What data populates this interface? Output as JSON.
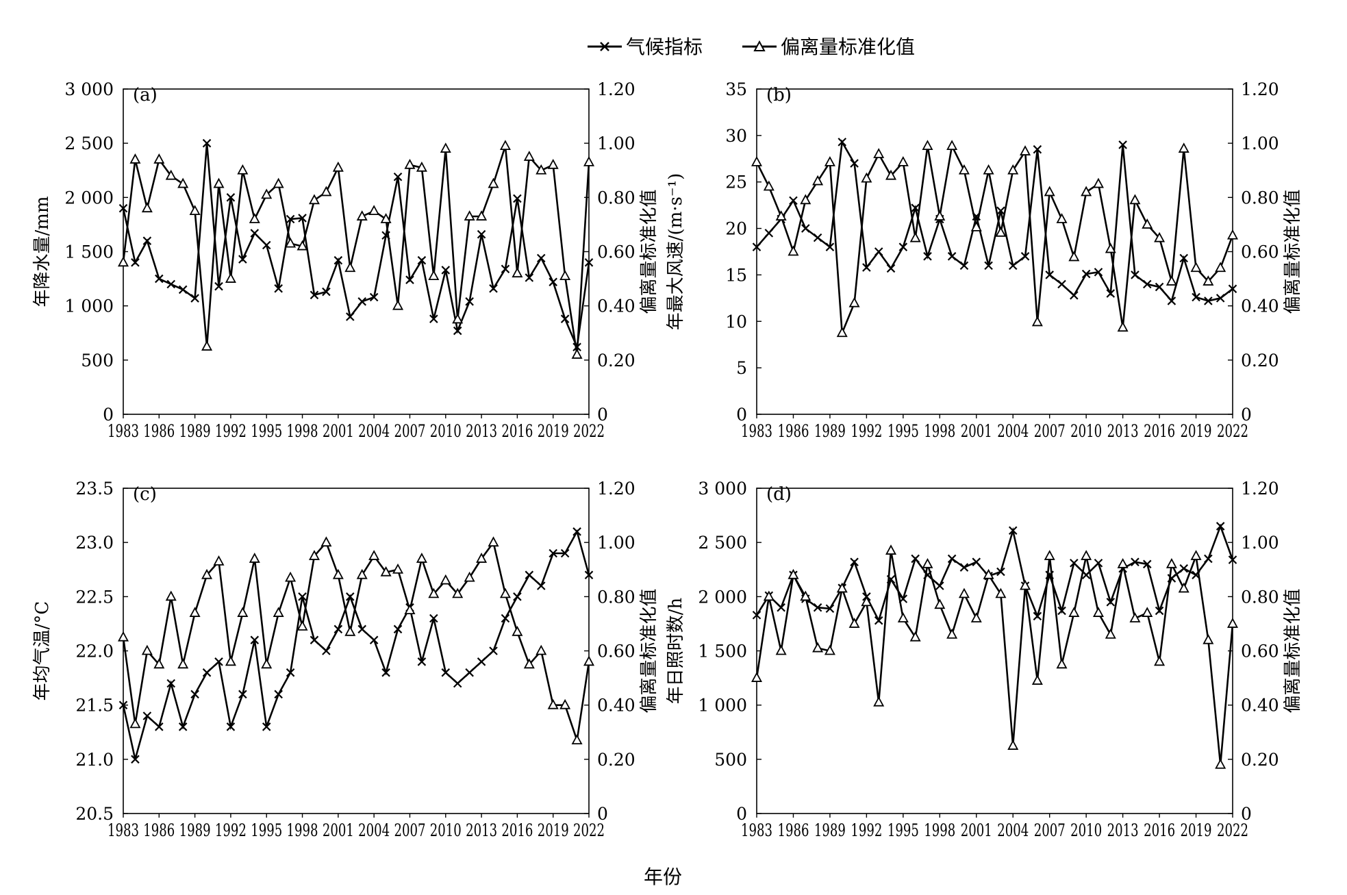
{
  "legend": {
    "climate_index": "气候指标",
    "deviation": "偏离量标准化值"
  },
  "x_axis_title": "年份",
  "chart_data": [
    {
      "panel_label": "(a)",
      "type": "line",
      "x": [
        1983,
        1984,
        1985,
        1986,
        1987,
        1988,
        1989,
        1990,
        1991,
        1992,
        1993,
        1994,
        1995,
        1996,
        1997,
        1998,
        1999,
        2000,
        2001,
        2002,
        2003,
        2004,
        2005,
        2006,
        2007,
        2008,
        2009,
        2010,
        2011,
        2012,
        2013,
        2014,
        2015,
        2016,
        2017,
        2018,
        2019,
        2020,
        2021,
        2022
      ],
      "xticks": [
        "1983",
        "1986",
        "1989",
        "1992",
        "1995",
        "1998",
        "2001",
        "2004",
        "2007",
        "2010",
        "2013",
        "2016",
        "2019",
        "2022"
      ],
      "ylabel_left": "年降水量/mm",
      "ylabel_right": "偏离量标准化值",
      "yticks_left": [
        "0",
        "500",
        "1 000",
        "1 500",
        "2 000",
        "2 500",
        "3 000"
      ],
      "yticks_right": [
        "0",
        "0.20",
        "0.40",
        "0.60",
        "0.80",
        "1.00",
        "1.20"
      ],
      "ylim_left": [
        0,
        3000
      ],
      "ylim_right": [
        0,
        1.2
      ],
      "series": [
        {
          "name": "气候指标",
          "axis": "left",
          "marker": "x",
          "values": [
            1900,
            1400,
            1600,
            1250,
            1200,
            1150,
            1070,
            2500,
            1180,
            2000,
            1430,
            1670,
            1560,
            1160,
            1800,
            1810,
            1100,
            1130,
            1420,
            900,
            1040,
            1080,
            1650,
            2190,
            1240,
            1420,
            880,
            1330,
            770,
            1040,
            1660,
            1160,
            1340,
            1990,
            1260,
            1440,
            1220,
            880,
            620,
            1400
          ]
        },
        {
          "name": "偏离量标准化值",
          "axis": "right",
          "marker": "triangle",
          "values": [
            0.56,
            0.94,
            0.76,
            0.94,
            0.88,
            0.85,
            0.75,
            0.25,
            0.85,
            0.5,
            0.9,
            0.72,
            0.81,
            0.85,
            0.63,
            0.62,
            0.79,
            0.82,
            0.91,
            0.54,
            0.73,
            0.75,
            0.72,
            0.4,
            0.92,
            0.91,
            0.51,
            0.98,
            0.35,
            0.73,
            0.73,
            0.85,
            0.99,
            0.52,
            0.95,
            0.9,
            0.92,
            0.51,
            0.22,
            0.93
          ]
        }
      ]
    },
    {
      "panel_label": "(b)",
      "type": "line",
      "x": [
        1983,
        1984,
        1985,
        1986,
        1987,
        1988,
        1989,
        1990,
        1991,
        1992,
        1993,
        1994,
        1995,
        1996,
        1997,
        1998,
        1999,
        2000,
        2001,
        2002,
        2003,
        2004,
        2005,
        2006,
        2007,
        2008,
        2009,
        2010,
        2011,
        2012,
        2013,
        2014,
        2015,
        2016,
        2017,
        2018,
        2019,
        2020,
        2021,
        2022
      ],
      "xticks": [
        "1983",
        "1986",
        "1989",
        "1992",
        "1995",
        "1998",
        "2001",
        "2004",
        "2007",
        "2010",
        "2013",
        "2016",
        "2019",
        "2022"
      ],
      "ylabel_left": "年最大风速/(m·s⁻¹)",
      "ylabel_right": "偏离量标准化值",
      "yticks_left": [
        "0",
        "5",
        "10",
        "15",
        "20",
        "25",
        "30",
        "35"
      ],
      "yticks_right": [
        "0",
        "0.20",
        "0.40",
        "0.60",
        "0.80",
        "1.00",
        "1.20"
      ],
      "ylim_left": [
        0,
        35
      ],
      "ylim_right": [
        0,
        1.2
      ],
      "series": [
        {
          "name": "气候指标",
          "axis": "left",
          "marker": "x",
          "values": [
            18,
            19.5,
            21,
            23,
            20,
            19,
            18,
            29.3,
            27,
            15.8,
            17.5,
            15.7,
            18,
            22.2,
            17,
            21,
            17,
            16,
            21.3,
            16,
            21.9,
            16,
            17,
            28.5,
            15,
            14,
            12.8,
            15.1,
            15.3,
            13,
            29,
            15,
            14,
            13.7,
            12.2,
            16.8,
            12.6,
            12.2,
            12.5,
            13.5
          ]
        },
        {
          "name": "偏离量标准化值",
          "axis": "right",
          "marker": "triangle",
          "values": [
            0.93,
            0.84,
            0.73,
            0.6,
            0.79,
            0.86,
            0.93,
            0.3,
            0.41,
            0.87,
            0.96,
            0.88,
            0.93,
            0.65,
            0.99,
            0.73,
            0.99,
            0.9,
            0.69,
            0.9,
            0.67,
            0.9,
            0.97,
            0.34,
            0.82,
            0.72,
            0.58,
            0.82,
            0.85,
            0.61,
            0.32,
            0.79,
            0.7,
            0.65,
            0.49,
            0.98,
            0.54,
            0.49,
            0.54,
            0.66
          ]
        }
      ]
    },
    {
      "panel_label": "(c)",
      "type": "line",
      "x": [
        1983,
        1984,
        1985,
        1986,
        1987,
        1988,
        1989,
        1990,
        1991,
        1992,
        1993,
        1994,
        1995,
        1996,
        1997,
        1998,
        1999,
        2000,
        2001,
        2002,
        2003,
        2004,
        2005,
        2006,
        2007,
        2008,
        2009,
        2010,
        2011,
        2012,
        2013,
        2014,
        2015,
        2016,
        2017,
        2018,
        2019,
        2020,
        2021,
        2022
      ],
      "xticks": [
        "1983",
        "1986",
        "1989",
        "1992",
        "1995",
        "1998",
        "2001",
        "2004",
        "2007",
        "2010",
        "2013",
        "2016",
        "2019",
        "2022"
      ],
      "ylabel_left": "年均气温/°C",
      "ylabel_right": "偏离量标准化值",
      "yticks_left": [
        "20.5",
        "21.0",
        "21.5",
        "22.0",
        "22.5",
        "23.0",
        "23.5"
      ],
      "yticks_right": [
        "0",
        "0.20",
        "0.40",
        "0.60",
        "0.80",
        "1.00",
        "1.20"
      ],
      "ylim_left": [
        20.5,
        23.5
      ],
      "ylim_right": [
        0,
        1.2
      ],
      "series": [
        {
          "name": "气候指标",
          "axis": "left",
          "marker": "x",
          "values": [
            21.5,
            21.0,
            21.4,
            21.3,
            21.7,
            21.3,
            21.6,
            21.8,
            21.9,
            21.3,
            21.6,
            22.1,
            21.3,
            21.6,
            21.8,
            22.5,
            22.1,
            22.0,
            22.2,
            22.5,
            22.2,
            22.1,
            21.8,
            22.2,
            22.4,
            21.9,
            22.3,
            21.8,
            21.7,
            21.8,
            21.9,
            22.0,
            22.3,
            22.5,
            22.7,
            22.6,
            22.9,
            22.9,
            23.1,
            22.7
          ]
        },
        {
          "name": "偏离量标准化值",
          "axis": "right",
          "marker": "triangle",
          "values": [
            0.65,
            0.33,
            0.6,
            0.55,
            0.8,
            0.55,
            0.74,
            0.88,
            0.93,
            0.56,
            0.74,
            0.94,
            0.55,
            0.74,
            0.87,
            0.69,
            0.95,
            1.0,
            0.88,
            0.67,
            0.88,
            0.95,
            0.89,
            0.9,
            0.75,
            0.94,
            0.81,
            0.86,
            0.81,
            0.87,
            0.94,
            1.0,
            0.81,
            0.67,
            0.55,
            0.6,
            0.4,
            0.4,
            0.27,
            0.56
          ]
        }
      ]
    },
    {
      "panel_label": "(d)",
      "type": "line",
      "x": [
        1983,
        1984,
        1985,
        1986,
        1987,
        1988,
        1989,
        1990,
        1991,
        1992,
        1993,
        1994,
        1995,
        1996,
        1997,
        1998,
        1999,
        2000,
        2001,
        2002,
        2003,
        2004,
        2005,
        2006,
        2007,
        2008,
        2009,
        2010,
        2011,
        2012,
        2013,
        2014,
        2015,
        2016,
        2017,
        2018,
        2019,
        2020,
        2021,
        2022
      ],
      "xticks": [
        "1983",
        "1986",
        "1989",
        "1992",
        "1995",
        "1998",
        "2001",
        "2004",
        "2007",
        "2010",
        "2013",
        "2016",
        "2019",
        "2022"
      ],
      "ylabel_left": "年日照时数/h",
      "ylabel_right": "偏离量标准化值",
      "yticks_left": [
        "0",
        "500",
        "1 000",
        "1 500",
        "2 000",
        "2 500",
        "3 000"
      ],
      "yticks_right": [
        "0",
        "0.20",
        "0.40",
        "0.60",
        "0.80",
        "1.00",
        "1.20"
      ],
      "ylim_left": [
        0,
        3000
      ],
      "ylim_right": [
        0,
        1.2
      ],
      "series": [
        {
          "name": "气候指标",
          "axis": "left",
          "marker": "x",
          "values": [
            1830,
            2010,
            1900,
            2200,
            1980,
            1900,
            1890,
            2080,
            2320,
            2000,
            1780,
            2160,
            1980,
            2350,
            2200,
            2100,
            2350,
            2270,
            2320,
            2190,
            2230,
            2610,
            2100,
            1820,
            2200,
            1870,
            2310,
            2200,
            2310,
            1950,
            2260,
            2320,
            2300,
            1870,
            2170,
            2260,
            2200,
            2350,
            2650,
            2340
          ]
        },
        {
          "name": "偏离量标准化值",
          "axis": "right",
          "marker": "triangle",
          "values": [
            0.5,
            0.8,
            0.6,
            0.88,
            0.8,
            0.61,
            0.6,
            0.83,
            0.7,
            0.78,
            0.41,
            0.97,
            0.72,
            0.65,
            0.92,
            0.77,
            0.66,
            0.81,
            0.72,
            0.88,
            0.81,
            0.25,
            0.84,
            0.49,
            0.95,
            0.55,
            0.74,
            0.95,
            0.74,
            0.66,
            0.92,
            0.72,
            0.74,
            0.56,
            0.92,
            0.83,
            0.95,
            0.64,
            0.18,
            0.7
          ]
        }
      ]
    }
  ]
}
